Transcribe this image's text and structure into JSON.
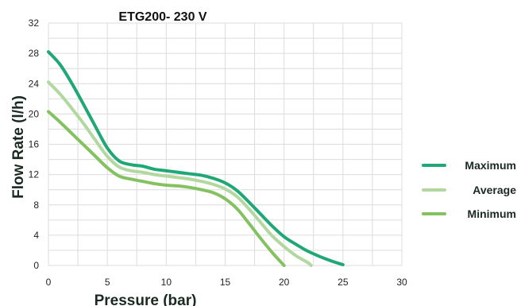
{
  "chart_data": {
    "type": "line",
    "title": "ETG200- 230 V",
    "xlabel": "Pressure (bar)",
    "ylabel": "Flow Rate (l/h)",
    "xlim": [
      0,
      30
    ],
    "ylim": [
      0,
      32
    ],
    "xticks": [
      0,
      5,
      10,
      15,
      20,
      25,
      30
    ],
    "yticks": [
      0,
      4,
      8,
      12,
      16,
      20,
      24,
      28,
      32
    ],
    "grid": true,
    "legend_position": "right",
    "series": [
      {
        "name": "Maximum",
        "color": "#1fa876",
        "x": [
          0,
          1,
          2,
          3,
          4,
          5,
          6,
          7,
          8,
          9,
          10,
          11,
          12,
          13,
          14,
          15,
          16,
          17,
          18,
          19,
          20,
          21,
          22,
          23,
          24,
          25
        ],
        "y": [
          28.2,
          26.5,
          24.0,
          21.2,
          18.3,
          15.5,
          13.8,
          13.3,
          13.1,
          12.7,
          12.5,
          12.3,
          12.1,
          11.9,
          11.5,
          10.9,
          9.9,
          8.4,
          6.8,
          5.2,
          3.8,
          2.8,
          1.9,
          1.2,
          0.6,
          0.1
        ]
      },
      {
        "name": "Average",
        "color": "#b2d8a0",
        "x": [
          0,
          1,
          2,
          3,
          4,
          5,
          6,
          7,
          8,
          9,
          10,
          11,
          12,
          13,
          14,
          15,
          16,
          17,
          18,
          19,
          20,
          21,
          22,
          22.3
        ],
        "y": [
          24.2,
          22.6,
          20.7,
          18.7,
          16.5,
          14.4,
          13.0,
          12.5,
          12.3,
          12.0,
          11.8,
          11.6,
          11.4,
          11.1,
          10.7,
          10.1,
          9.1,
          7.5,
          5.7,
          3.9,
          2.5,
          1.3,
          0.4,
          0
        ]
      },
      {
        "name": "Minimum",
        "color": "#84c261",
        "x": [
          0,
          1,
          2,
          3,
          4,
          5,
          6,
          7,
          8,
          9,
          10,
          11,
          12,
          13,
          14,
          15,
          16,
          17,
          18,
          19,
          20
        ],
        "y": [
          20.3,
          18.9,
          17.4,
          15.9,
          14.4,
          12.9,
          11.8,
          11.4,
          11.1,
          10.8,
          10.6,
          10.5,
          10.3,
          10.0,
          9.6,
          8.8,
          7.5,
          5.6,
          3.6,
          1.7,
          0
        ]
      }
    ]
  }
}
